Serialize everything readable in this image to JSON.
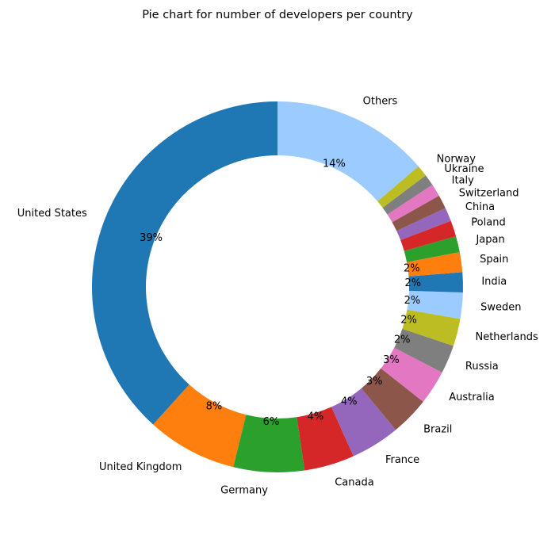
{
  "chart_data": {
    "type": "pie",
    "style": "donut",
    "title": "Pie chart for number of developers per country",
    "direction": "counterclockwise",
    "slices": [
      {
        "label": "United States",
        "value": 38.5,
        "pct_label": "39%",
        "color": "#1f77b4"
      },
      {
        "label": "United Kingdom",
        "value": 7.9,
        "pct_label": "8%",
        "color": "#ff7f0e"
      },
      {
        "label": "Germany",
        "value": 6.2,
        "pct_label": "6%",
        "color": "#2ca02c"
      },
      {
        "label": "Canada",
        "value": 4.4,
        "pct_label": "4%",
        "color": "#d62728"
      },
      {
        "label": "France",
        "value": 4.3,
        "pct_label": "4%",
        "color": "#9467bd"
      },
      {
        "label": "Brazil",
        "value": 3.4,
        "pct_label": "3%",
        "color": "#8c564b"
      },
      {
        "label": "Australia",
        "value": 3.0,
        "pct_label": "3%",
        "color": "#e377c2"
      },
      {
        "label": "Russia",
        "value": 2.5,
        "pct_label": "2%",
        "color": "#7f7f7f"
      },
      {
        "label": "Netherlands",
        "value": 2.4,
        "pct_label": "2%",
        "color": "#bcbd22"
      },
      {
        "label": "Sweden",
        "value": 2.3,
        "pct_label": "2%",
        "color": "#9ccbff"
      },
      {
        "label": "India",
        "value": 1.75,
        "pct_label": "2%",
        "color": "#1f77b4"
      },
      {
        "label": "Spain",
        "value": 1.75,
        "pct_label": "2%",
        "color": "#ff7f0e"
      },
      {
        "label": "Japan",
        "value": 1.4,
        "pct_label": "",
        "color": "#2ca02c"
      },
      {
        "label": "Poland",
        "value": 1.4,
        "pct_label": "",
        "color": "#d62728"
      },
      {
        "label": "China",
        "value": 1.2,
        "pct_label": "",
        "color": "#9467bd"
      },
      {
        "label": "Switzerland",
        "value": 1.2,
        "pct_label": "",
        "color": "#8c564b"
      },
      {
        "label": "Italy",
        "value": 1.1,
        "pct_label": "",
        "color": "#e377c2"
      },
      {
        "label": "Ukraine",
        "value": 1.0,
        "pct_label": "",
        "color": "#7f7f7f"
      },
      {
        "label": "Norway",
        "value": 1.0,
        "pct_label": "",
        "color": "#bcbd22"
      },
      {
        "label": "Others",
        "value": 13.8,
        "pct_label": "14%",
        "color": "#9ccbff"
      }
    ]
  }
}
